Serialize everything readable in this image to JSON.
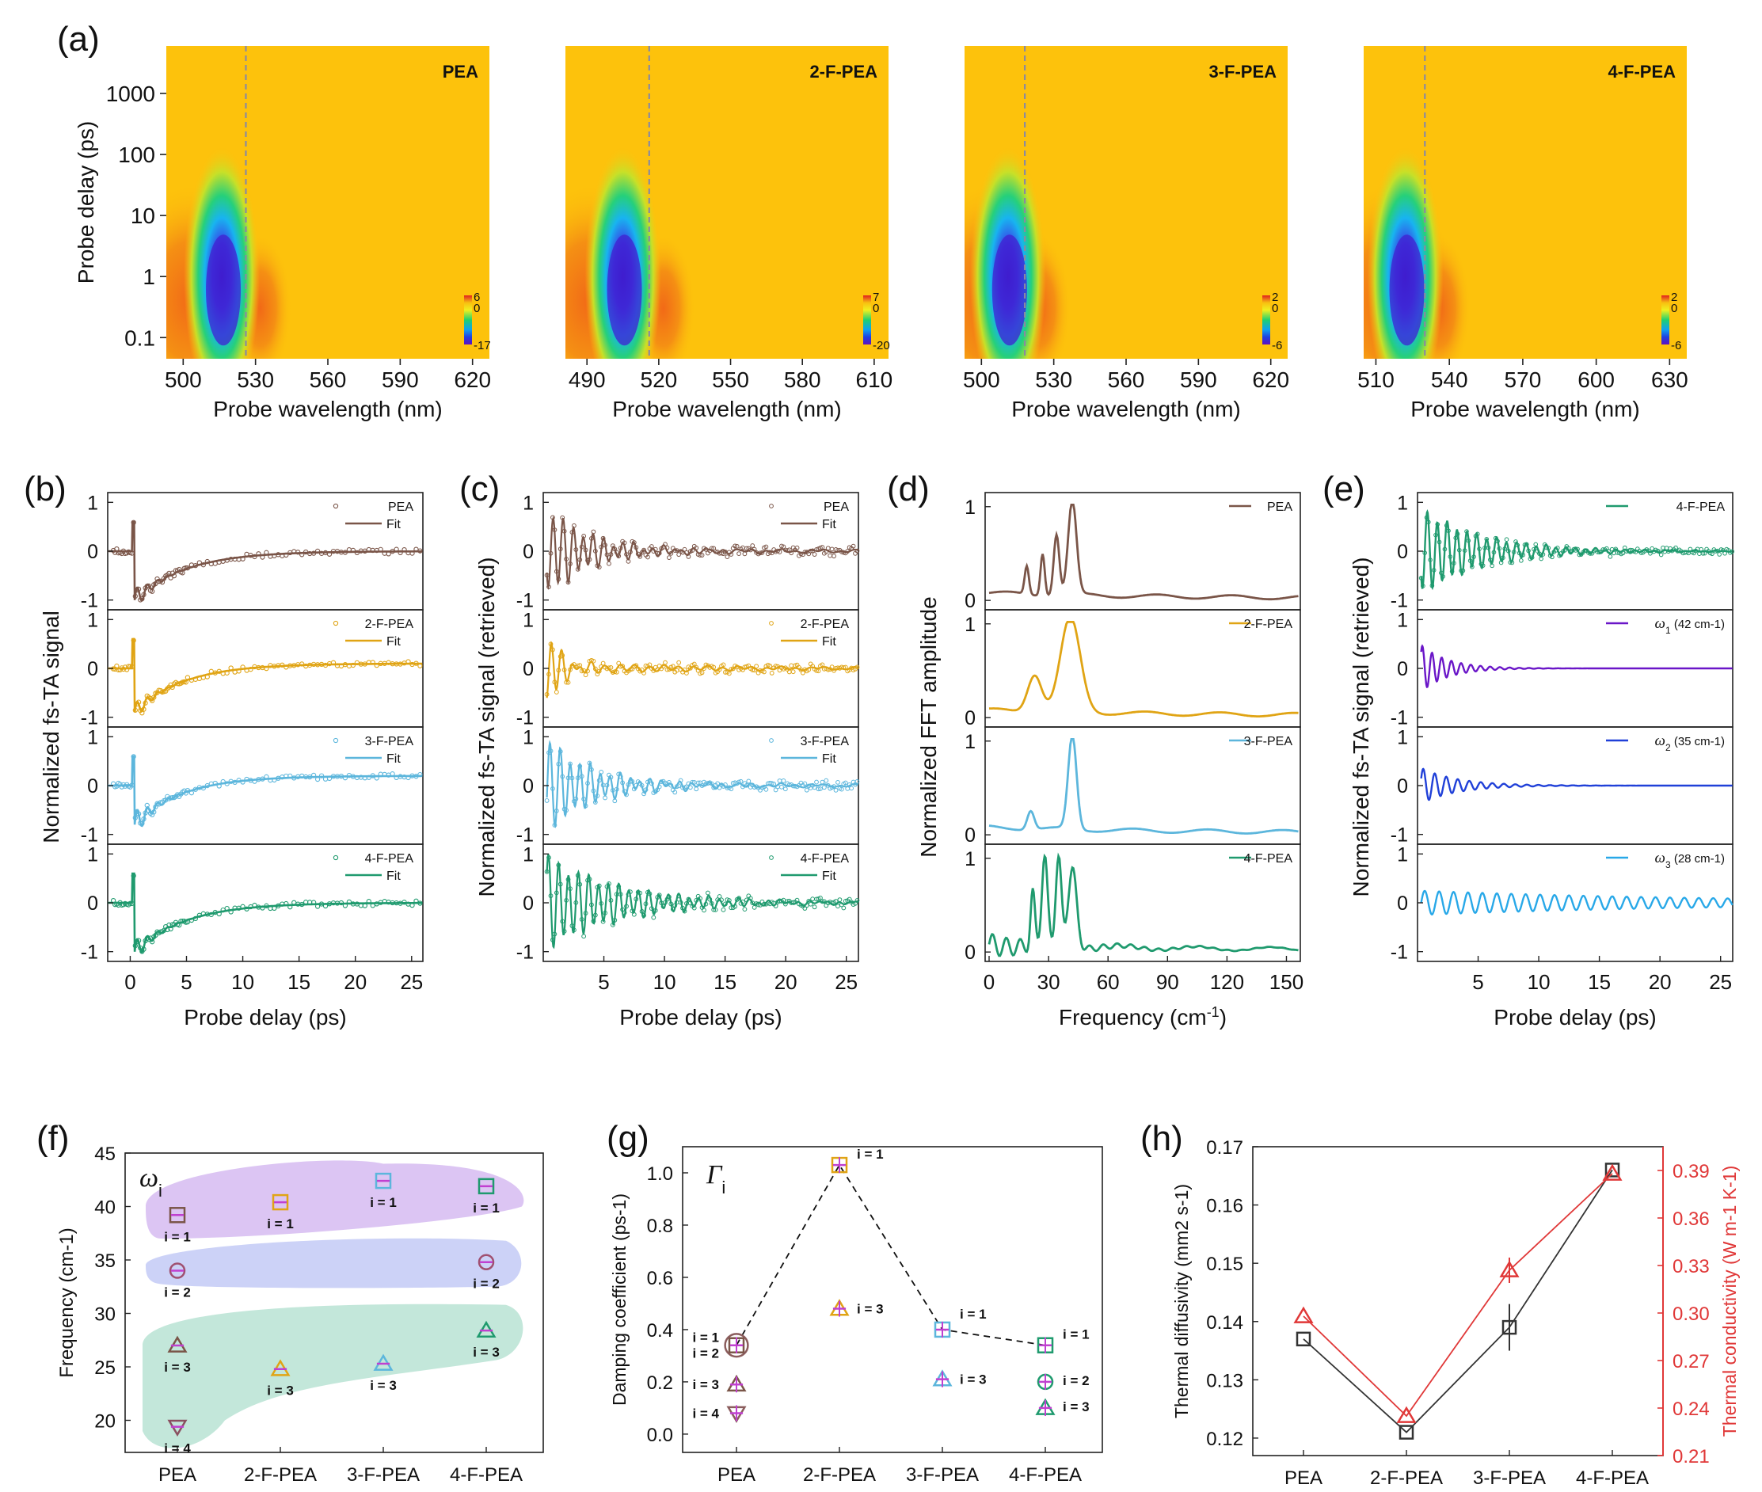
{
  "panel_labels": [
    "(a)",
    "(b)",
    "(c)",
    "(d)",
    "(e)",
    "(f)",
    "(g)",
    "(h)"
  ],
  "colors": {
    "PEA": "#7a5548",
    "2-F-PEA": "#e0a414",
    "3-F-PEA": "#5cb6dc",
    "4-F-PEA": "#1f9a6e",
    "w1": "#6a16c8",
    "w2": "#2040d8",
    "w3": "#28a8e8",
    "diffusivity": "#333333",
    "conductivity": "#e03838",
    "heat_bg": "#fdc20c",
    "dash": "#8a8aa0"
  },
  "chart_data": [
    {
      "id": "a",
      "type": "heatmap",
      "xlabel": "Probe wavelength (nm)",
      "ylabel": "Probe delay (ps)",
      "y_ticks": [
        "0.1",
        "1",
        "10",
        "100",
        "1000"
      ],
      "maps": [
        {
          "name": "PEA",
          "x_ticks": [
            "500",
            "530",
            "560",
            "590",
            "620"
          ],
          "xlim": [
            493,
            627
          ],
          "bleach_center": 516,
          "dashed_line": 526,
          "colorbar": [
            "6",
            "0",
            "-17"
          ]
        },
        {
          "name": "2-F-PEA",
          "x_ticks": [
            "490",
            "520",
            "550",
            "580",
            "610"
          ],
          "xlim": [
            481,
            616
          ],
          "bleach_center": 505,
          "dashed_line": 516,
          "colorbar": [
            "7",
            "0",
            "-20"
          ]
        },
        {
          "name": "3-F-PEA",
          "x_ticks": [
            "500",
            "530",
            "560",
            "590",
            "620"
          ],
          "xlim": [
            493,
            627
          ],
          "bleach_center": 511,
          "dashed_line": 518,
          "colorbar": [
            "2",
            "0",
            "-6"
          ]
        },
        {
          "name": "4-F-PEA",
          "x_ticks": [
            "510",
            "540",
            "570",
            "600",
            "630"
          ],
          "xlim": [
            505,
            637
          ],
          "bleach_center": 522,
          "dashed_line": 530,
          "colorbar": [
            "2",
            "0",
            "-6"
          ]
        }
      ]
    },
    {
      "id": "b",
      "type": "line",
      "xlabel": "Probe delay (ps)",
      "ylabel": "Normalized fs-TA signal",
      "xlim": [
        -2,
        26
      ],
      "x_ticks": [
        0,
        5,
        10,
        15,
        20,
        25
      ],
      "ylim": [
        -1.2,
        1.2
      ],
      "y_ticks": [
        -1,
        0,
        1
      ],
      "legend_fit": "Fit",
      "series": [
        {
          "name": "PEA",
          "offset": 0.0,
          "osc": 0.25
        },
        {
          "name": "2-F-PEA",
          "offset": 0.1,
          "osc": 0.2
        },
        {
          "name": "3-F-PEA",
          "offset": 0.2,
          "osc": 0.3
        },
        {
          "name": "4-F-PEA",
          "offset": 0.0,
          "osc": 0.25
        }
      ]
    },
    {
      "id": "c",
      "type": "line",
      "xlabel": "Probe delay (ps)",
      "ylabel": "Normalized fs-TA signal (retrieved)",
      "xlim": [
        0,
        26
      ],
      "x_ticks": [
        5,
        10,
        15,
        20,
        25
      ],
      "ylim": [
        -1.2,
        1.2
      ],
      "y_ticks": [
        -1,
        0,
        1
      ],
      "legend_fit": "Fit",
      "series": [
        {
          "name": "PEA",
          "decay": 3.5
        },
        {
          "name": "2-F-PEA",
          "decay": 1.2
        },
        {
          "name": "3-F-PEA",
          "decay": 4.0
        },
        {
          "name": "4-F-PEA",
          "decay": 6.0
        }
      ]
    },
    {
      "id": "d",
      "type": "line",
      "xlabel": "Frequency (cm-1)",
      "ylabel": "Normalized FFT amplitude",
      "xlim": [
        -2,
        157
      ],
      "x_ticks": [
        0,
        30,
        60,
        90,
        120,
        150
      ],
      "ylim": [
        -0.1,
        1.15
      ],
      "y_ticks": [
        0,
        1
      ],
      "series": [
        {
          "name": "PEA",
          "peaks": [
            [
              42,
              1.0,
              3
            ],
            [
              34,
              0.65,
              2
            ],
            [
              27,
              0.45,
              1.5
            ],
            [
              19,
              0.3,
              1.5
            ]
          ]
        },
        {
          "name": "2-F-PEA",
          "peaks": [
            [
              41,
              1.0,
              7
            ],
            [
              23,
              0.4,
              5
            ]
          ]
        },
        {
          "name": "3-F-PEA",
          "peaks": [
            [
              42,
              1.0,
              3
            ],
            [
              21,
              0.2,
              2.5
            ]
          ]
        },
        {
          "name": "4-F-PEA",
          "peaks": [
            [
              28,
              0.95,
              2
            ],
            [
              35,
              0.95,
              2
            ],
            [
              42,
              0.85,
              3
            ],
            [
              22,
              0.55,
              1.5
            ]
          ]
        }
      ]
    },
    {
      "id": "e",
      "type": "line",
      "xlabel": "Probe delay (ps)",
      "ylabel": "Normalized fs-TA signal (retrieved)",
      "xlim": [
        0,
        26
      ],
      "x_ticks": [
        5,
        10,
        15,
        20,
        25
      ],
      "ylim": [
        -1.2,
        1.2
      ],
      "y_ticks": [
        -1,
        0,
        1
      ],
      "series": [
        {
          "name": "4-F-PEA",
          "legend": "4-F-PEA"
        },
        {
          "name": "w1",
          "symbol": "ω",
          "sub": "1",
          "legend": "(42 cm-1)",
          "amp": 0.55,
          "period": 0.8,
          "decay": 2.2
        },
        {
          "name": "w2",
          "symbol": "ω",
          "sub": "2",
          "legend": "(35 cm-1)",
          "amp": 0.4,
          "period": 0.95,
          "decay": 3.0
        },
        {
          "name": "w3",
          "symbol": "ω",
          "sub": "3",
          "legend": "(28 cm-1)",
          "amp": 0.25,
          "period": 1.19,
          "decay": 25
        }
      ]
    },
    {
      "id": "f",
      "type": "scatter",
      "title": "ωi",
      "ylabel": "Frequency (cm-1)",
      "categories": [
        "PEA",
        "2-F-PEA",
        "3-F-PEA",
        "4-F-PEA"
      ],
      "ylim": [
        17,
        45
      ],
      "y_ticks": [
        20,
        25,
        30,
        35,
        40,
        45
      ],
      "points": [
        {
          "cat": 0,
          "y": 39.2,
          "marker": "square",
          "label": "i = 1"
        },
        {
          "cat": 0,
          "y": 34.0,
          "marker": "circle",
          "label": "i = 2"
        },
        {
          "cat": 0,
          "y": 27.0,
          "marker": "triangle",
          "label": "i = 3"
        },
        {
          "cat": 0,
          "y": 19.4,
          "marker": "triangle-down",
          "label": "i = 4"
        },
        {
          "cat": 1,
          "y": 40.4,
          "marker": "square",
          "label": "i = 1"
        },
        {
          "cat": 1,
          "y": 24.8,
          "marker": "triangle",
          "label": "i = 3"
        },
        {
          "cat": 2,
          "y": 42.4,
          "marker": "square",
          "label": "i = 1"
        },
        {
          "cat": 2,
          "y": 25.3,
          "marker": "triangle",
          "label": "i = 3"
        },
        {
          "cat": 3,
          "y": 41.9,
          "marker": "square",
          "label": "i = 1"
        },
        {
          "cat": 3,
          "y": 34.8,
          "marker": "circle",
          "label": "i = 2"
        },
        {
          "cat": 3,
          "y": 28.4,
          "marker": "triangle",
          "label": "i = 3"
        }
      ]
    },
    {
      "id": "g",
      "type": "scatter",
      "title": "Γi",
      "ylabel": "Damping coefficient (ps-1)",
      "categories": [
        "PEA",
        "2-F-PEA",
        "3-F-PEA",
        "4-F-PEA"
      ],
      "ylim": [
        -0.07,
        1.1
      ],
      "y_ticks": [
        "0.0",
        "0.2",
        "0.4",
        "0.6",
        "0.8",
        "1.0"
      ],
      "dashed_series": [
        0.34,
        1.03,
        0.4,
        0.34
      ],
      "points": [
        {
          "cat": 0,
          "y": 0.34,
          "marker": "square",
          "label": "i = 1"
        },
        {
          "cat": 0,
          "y": 0.34,
          "marker": "circle-big",
          "label": "i = 2"
        },
        {
          "cat": 0,
          "y": 0.19,
          "marker": "triangle",
          "label": "i = 3"
        },
        {
          "cat": 0,
          "y": 0.08,
          "marker": "triangle-down",
          "label": "i = 4"
        },
        {
          "cat": 1,
          "y": 1.03,
          "marker": "square",
          "label": "i = 1"
        },
        {
          "cat": 1,
          "y": 0.48,
          "marker": "triangle",
          "label": "i = 3"
        },
        {
          "cat": 2,
          "y": 0.4,
          "marker": "square",
          "label": "i = 1"
        },
        {
          "cat": 2,
          "y": 0.21,
          "marker": "triangle",
          "label": "i = 3"
        },
        {
          "cat": 3,
          "y": 0.34,
          "marker": "square",
          "label": "i = 1"
        },
        {
          "cat": 3,
          "y": 0.2,
          "marker": "circle",
          "label": "i = 2"
        },
        {
          "cat": 3,
          "y": 0.1,
          "marker": "triangle",
          "label": "i = 3"
        }
      ]
    },
    {
      "id": "h",
      "type": "line",
      "ylabel": "Thermal diffusivity (mm2 s-1)",
      "y2label": "Thermal conductivity (W m-1 K-1)",
      "categories": [
        "PEA",
        "2-F-PEA",
        "3-F-PEA",
        "4-F-PEA"
      ],
      "ylim": [
        0.117,
        0.17
      ],
      "y_ticks": [
        "0.12",
        "0.13",
        "0.14",
        "0.15",
        "0.16",
        "0.17"
      ],
      "y2lim": [
        0.21,
        0.405
      ],
      "y2_ticks": [
        "0.21",
        "0.24",
        "0.27",
        "0.30",
        "0.33",
        "0.36",
        "0.39"
      ],
      "series": [
        {
          "name": "Thermal diffusivity",
          "values": [
            0.137,
            0.121,
            0.139,
            0.166
          ],
          "errors": [
            0.0,
            0.0,
            0.004,
            0.0
          ],
          "marker": "square"
        },
        {
          "name": "Thermal conductivity",
          "values": [
            0.298,
            0.235,
            0.327,
            0.388
          ],
          "errors": [
            0.0,
            0.0,
            0.008,
            0.0
          ],
          "marker": "triangle"
        }
      ]
    }
  ]
}
